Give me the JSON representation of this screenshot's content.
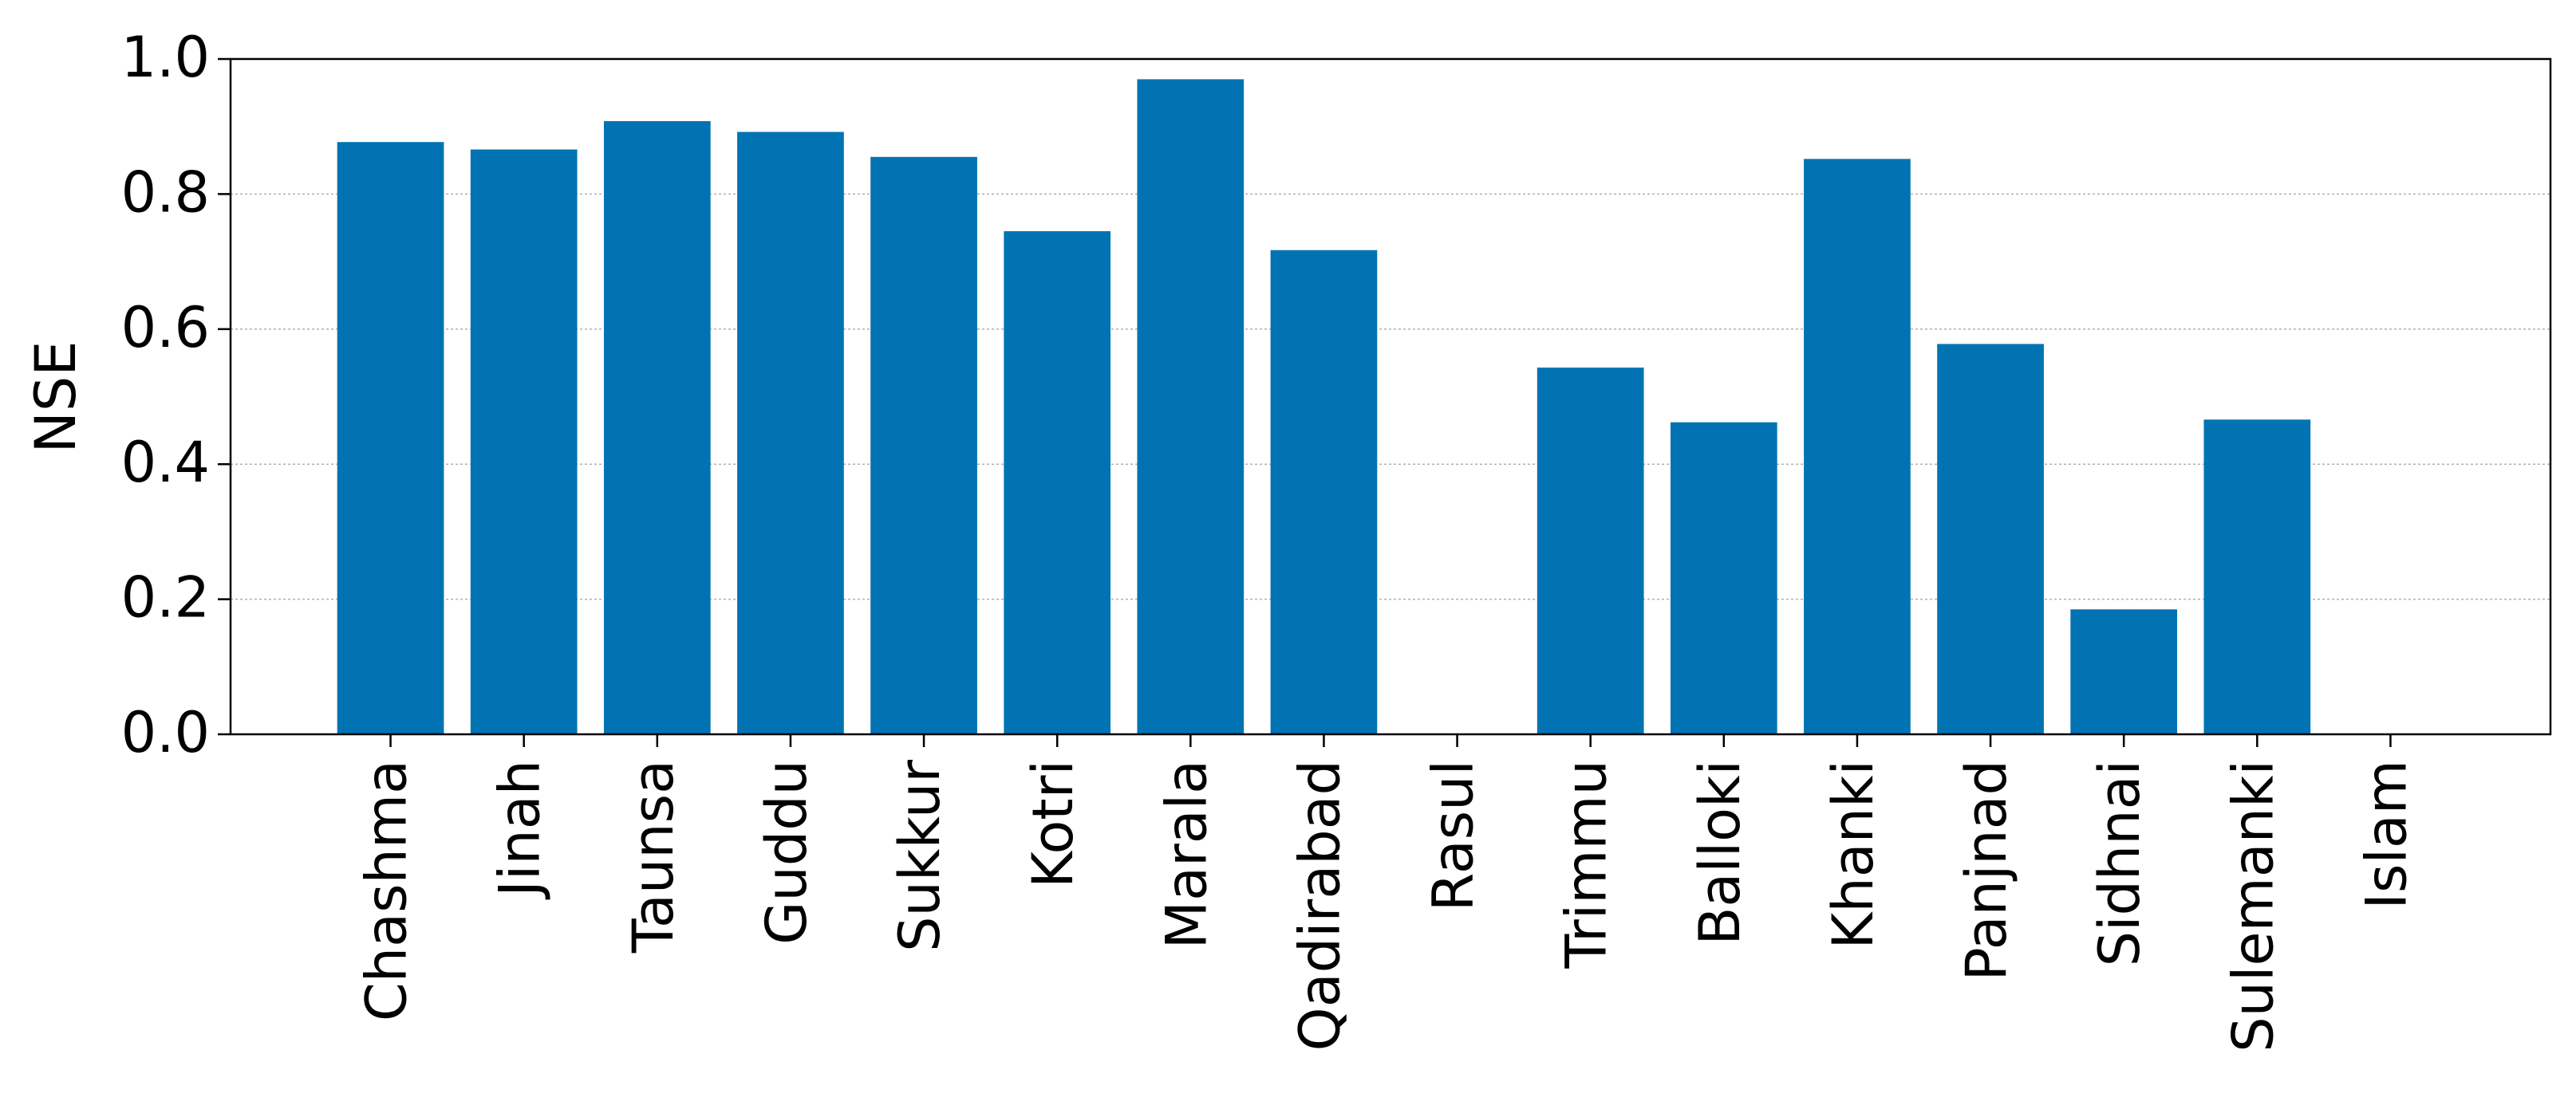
{
  "chart_data": {
    "type": "bar",
    "ylabel": "NSE",
    "categories": [
      "Chashma",
      "Jinah",
      "Taunsa",
      "Guddu",
      "Sukkur",
      "Kotri",
      "Marala",
      "Qadirabad",
      "Rasul",
      "Trimmu",
      "Balloki",
      "Khanki",
      "Panjnad",
      "Sidhnai",
      "Sulemanki",
      "Islam"
    ],
    "values": [
      0.877,
      0.866,
      0.908,
      0.892,
      0.855,
      0.745,
      0.97,
      0.717,
      null,
      0.543,
      0.462,
      0.852,
      0.578,
      0.185,
      0.466,
      null
    ],
    "color": "#0173b2",
    "ylim": [
      0,
      1
    ],
    "yticks": [
      {
        "value": 0,
        "label": "0.0"
      },
      0.2,
      0.4,
      0.6,
      0.8,
      {
        "value": 1,
        "label": "1.0"
      }
    ],
    "grid": true
  }
}
